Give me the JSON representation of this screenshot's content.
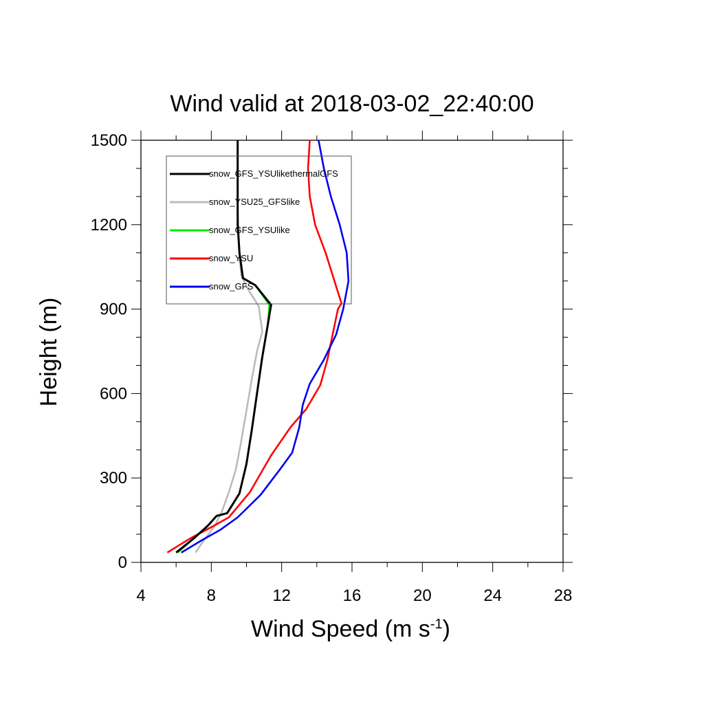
{
  "chart_data": {
    "type": "line",
    "title": "Wind valid at 2018-03-02_22:40:00",
    "xlabel": "Wind Speed (m s",
    "xlabel_sup": "-1",
    "xlabel_end": ")",
    "ylabel": "Height (m)",
    "xlim": [
      4,
      28
    ],
    "ylim": [
      0,
      1500
    ],
    "xticks": [
      "4",
      "8",
      "12",
      "16",
      "20",
      "24",
      "28"
    ],
    "yticks": [
      "0",
      "300",
      "600",
      "900",
      "1200",
      "1500"
    ],
    "grid": false,
    "legend_position": "top-left",
    "series": [
      {
        "name": "snow_GFS_YSUlikethermalGFS",
        "color": "#000000",
        "points": [
          [
            6.0,
            35
          ],
          [
            7.0,
            85
          ],
          [
            7.8,
            130
          ],
          [
            8.3,
            165
          ],
          [
            8.9,
            175
          ],
          [
            9.6,
            245
          ],
          [
            10.0,
            350
          ],
          [
            10.3,
            470
          ],
          [
            10.6,
            600
          ],
          [
            10.9,
            730
          ],
          [
            11.2,
            840
          ],
          [
            11.4,
            915
          ],
          [
            10.5,
            985
          ],
          [
            9.8,
            1010
          ],
          [
            9.6,
            1100
          ],
          [
            9.5,
            1200
          ],
          [
            9.5,
            1350
          ],
          [
            9.5,
            1500
          ]
        ]
      },
      {
        "name": "snow_YSU25_GFSlike",
        "color": "#bbbbbb",
        "points": [
          [
            7.1,
            35
          ],
          [
            7.6,
            80
          ],
          [
            8.2,
            130
          ],
          [
            8.6,
            180
          ],
          [
            9.0,
            250
          ],
          [
            9.4,
            330
          ],
          [
            9.7,
            430
          ],
          [
            10.0,
            540
          ],
          [
            10.3,
            650
          ],
          [
            10.6,
            750
          ],
          [
            10.9,
            820
          ],
          [
            10.7,
            910
          ],
          [
            10.0,
            980
          ],
          [
            9.7,
            1020
          ],
          [
            9.6,
            1100
          ],
          [
            9.5,
            1250
          ],
          [
            9.5,
            1500
          ]
        ]
      },
      {
        "name": "snow_GFS_YSUlike",
        "color": "#00ee00",
        "points": [
          [
            6.1,
            35
          ],
          [
            7.0,
            85
          ],
          [
            7.8,
            130
          ],
          [
            8.3,
            165
          ],
          [
            8.9,
            175
          ],
          [
            9.6,
            245
          ],
          [
            10.0,
            350
          ],
          [
            10.3,
            470
          ],
          [
            10.6,
            600
          ],
          [
            10.9,
            730
          ],
          [
            11.2,
            840
          ],
          [
            11.3,
            915
          ],
          [
            10.5,
            985
          ],
          [
            9.8,
            1010
          ],
          [
            9.6,
            1100
          ],
          [
            9.5,
            1200
          ],
          [
            9.5,
            1350
          ],
          [
            9.5,
            1500
          ]
        ]
      },
      {
        "name": "snow_YSU",
        "color": "#ff0000",
        "points": [
          [
            5.5,
            35
          ],
          [
            6.8,
            85
          ],
          [
            8.0,
            125
          ],
          [
            9.0,
            160
          ],
          [
            10.2,
            250
          ],
          [
            11.4,
            380
          ],
          [
            12.5,
            480
          ],
          [
            13.4,
            545
          ],
          [
            14.2,
            630
          ],
          [
            14.6,
            720
          ],
          [
            15.0,
            840
          ],
          [
            15.2,
            900
          ],
          [
            15.4,
            920
          ],
          [
            14.5,
            1100
          ],
          [
            13.9,
            1200
          ],
          [
            13.6,
            1300
          ],
          [
            13.5,
            1400
          ],
          [
            13.6,
            1500
          ]
        ]
      },
      {
        "name": "snow_GFS",
        "color": "#0000ee",
        "points": [
          [
            6.3,
            35
          ],
          [
            7.5,
            80
          ],
          [
            8.5,
            115
          ],
          [
            9.5,
            160
          ],
          [
            10.8,
            240
          ],
          [
            11.9,
            330
          ],
          [
            12.6,
            390
          ],
          [
            13.0,
            480
          ],
          [
            13.2,
            560
          ],
          [
            13.6,
            635
          ],
          [
            14.4,
            720
          ],
          [
            15.1,
            810
          ],
          [
            15.5,
            900
          ],
          [
            15.8,
            1000
          ],
          [
            15.7,
            1100
          ],
          [
            15.3,
            1200
          ],
          [
            14.8,
            1300
          ],
          [
            14.4,
            1400
          ],
          [
            14.1,
            1500
          ]
        ]
      }
    ]
  }
}
